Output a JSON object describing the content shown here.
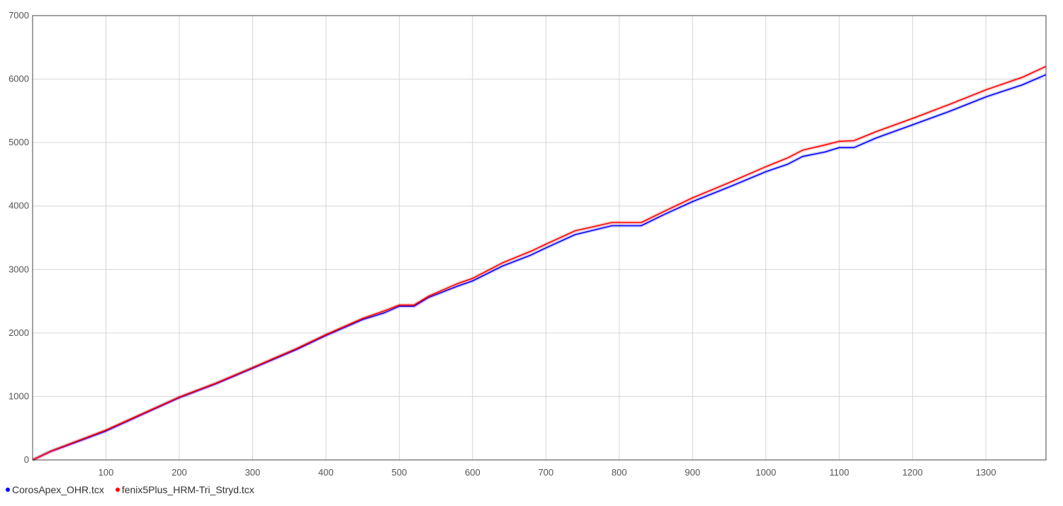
{
  "chart_data": {
    "type": "line",
    "title": "",
    "xlabel": "",
    "ylabel": "",
    "xlim": [
      0,
      1382
    ],
    "ylim": [
      0,
      7000
    ],
    "x_ticks": [
      100,
      200,
      300,
      400,
      500,
      600,
      700,
      800,
      900,
      1000,
      1100,
      1200,
      1300
    ],
    "y_ticks": [
      0,
      1000,
      2000,
      3000,
      4000,
      5000,
      6000,
      7000
    ],
    "grid": true,
    "legend_position": "bottom-left",
    "series": [
      {
        "name": "CorosApex_OHR.tcx",
        "color": "#0000ff",
        "points": [
          [
            0,
            0
          ],
          [
            25,
            135
          ],
          [
            50,
            240
          ],
          [
            100,
            455
          ],
          [
            150,
            720
          ],
          [
            200,
            980
          ],
          [
            250,
            1200
          ],
          [
            300,
            1445
          ],
          [
            360,
            1740
          ],
          [
            400,
            1960
          ],
          [
            450,
            2210
          ],
          [
            480,
            2320
          ],
          [
            500,
            2420
          ],
          [
            520,
            2420
          ],
          [
            540,
            2560
          ],
          [
            580,
            2740
          ],
          [
            600,
            2820
          ],
          [
            640,
            3050
          ],
          [
            680,
            3230
          ],
          [
            700,
            3340
          ],
          [
            740,
            3550
          ],
          [
            790,
            3690
          ],
          [
            830,
            3690
          ],
          [
            860,
            3860
          ],
          [
            900,
            4070
          ],
          [
            950,
            4300
          ],
          [
            1000,
            4540
          ],
          [
            1030,
            4660
          ],
          [
            1050,
            4780
          ],
          [
            1080,
            4850
          ],
          [
            1100,
            4920
          ],
          [
            1120,
            4920
          ],
          [
            1150,
            5070
          ],
          [
            1200,
            5280
          ],
          [
            1250,
            5490
          ],
          [
            1300,
            5720
          ],
          [
            1350,
            5910
          ],
          [
            1382,
            6070
          ]
        ]
      },
      {
        "name": "fenix5Plus_HRM-Tri_Stryd.tcx",
        "color": "#ff0000",
        "points": [
          [
            0,
            0
          ],
          [
            25,
            140
          ],
          [
            50,
            250
          ],
          [
            100,
            470
          ],
          [
            150,
            730
          ],
          [
            200,
            990
          ],
          [
            250,
            1210
          ],
          [
            300,
            1455
          ],
          [
            360,
            1755
          ],
          [
            400,
            1975
          ],
          [
            450,
            2230
          ],
          [
            480,
            2350
          ],
          [
            500,
            2440
          ],
          [
            520,
            2440
          ],
          [
            540,
            2580
          ],
          [
            580,
            2780
          ],
          [
            600,
            2860
          ],
          [
            640,
            3100
          ],
          [
            680,
            3290
          ],
          [
            700,
            3400
          ],
          [
            740,
            3610
          ],
          [
            790,
            3740
          ],
          [
            830,
            3740
          ],
          [
            860,
            3910
          ],
          [
            900,
            4130
          ],
          [
            950,
            4370
          ],
          [
            1000,
            4620
          ],
          [
            1030,
            4760
          ],
          [
            1050,
            4880
          ],
          [
            1080,
            4960
          ],
          [
            1100,
            5020
          ],
          [
            1120,
            5030
          ],
          [
            1150,
            5170
          ],
          [
            1200,
            5380
          ],
          [
            1250,
            5600
          ],
          [
            1300,
            5830
          ],
          [
            1350,
            6030
          ],
          [
            1382,
            6200
          ]
        ]
      }
    ]
  }
}
